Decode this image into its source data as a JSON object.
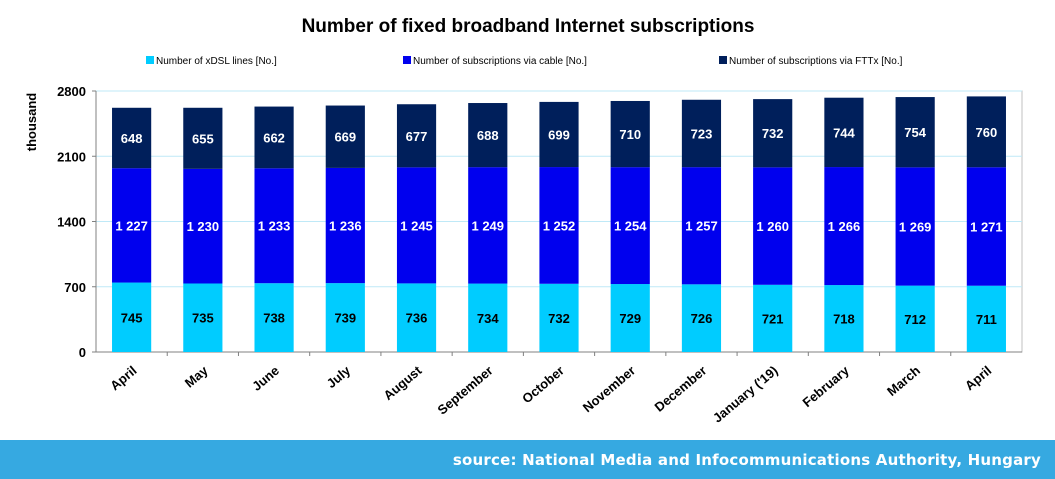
{
  "chart_data": {
    "type": "bar",
    "stacked": true,
    "title": "Number of fixed broadband Internet subscriptions",
    "ylabel": "thousand",
    "ylim": [
      0,
      2800
    ],
    "yticks": [
      0,
      700,
      1400,
      2100,
      2800
    ],
    "categories": [
      "April",
      "May",
      "June",
      "July",
      "August",
      "September",
      "October",
      "November",
      "December",
      "January ('19)",
      "February",
      "March",
      "April"
    ],
    "series": [
      {
        "name": "Number of xDSL lines [No.]",
        "color": "#00ccff",
        "values": [
          745,
          735,
          738,
          739,
          736,
          734,
          732,
          729,
          726,
          721,
          718,
          712,
          711
        ],
        "labels": [
          "745",
          "735",
          "738",
          "739",
          "736",
          "734",
          "732",
          "729",
          "726",
          "721",
          "718",
          "712",
          "711"
        ]
      },
      {
        "name": "Number of subscriptions via cable [No.]",
        "color": "#0000ee",
        "values": [
          1227,
          1230,
          1233,
          1236,
          1245,
          1249,
          1252,
          1254,
          1257,
          1260,
          1266,
          1269,
          1271
        ],
        "labels": [
          "1 227",
          "1 230",
          "1 233",
          "1 236",
          "1 245",
          "1 249",
          "1 252",
          "1 254",
          "1 257",
          "1 260",
          "1 266",
          "1 269",
          "1 271"
        ]
      },
      {
        "name": "Number of subscriptions via FTTx [No.]",
        "color": "#001f5b",
        "values": [
          648,
          655,
          662,
          669,
          677,
          688,
          699,
          710,
          723,
          732,
          744,
          754,
          760
        ],
        "labels": [
          "648",
          "655",
          "662",
          "669",
          "677",
          "688",
          "699",
          "710",
          "723",
          "732",
          "744",
          "754",
          "760"
        ]
      }
    ],
    "grid": true,
    "legend": "top"
  },
  "source": "source: National Media and Infocommunications Authority, Hungary"
}
